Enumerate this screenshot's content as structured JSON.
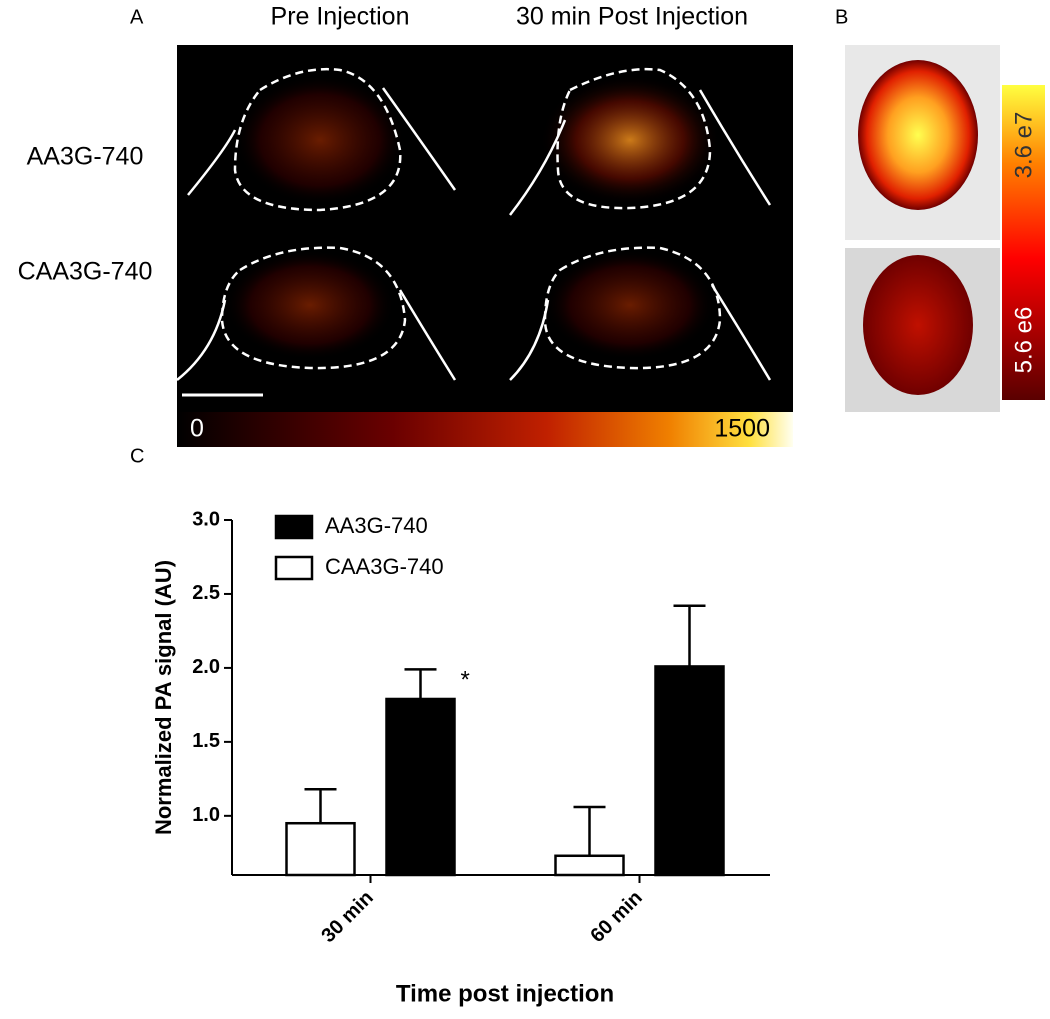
{
  "panel_labels": [
    "A",
    "B",
    "C"
  ],
  "panel_a": {
    "columns": [
      "Pre Injection",
      "30 min Post Injection"
    ],
    "rows": [
      "AA3G-740",
      "CAA3G-740"
    ],
    "colorbar": {
      "min": 0,
      "max": 1500
    }
  },
  "panel_b": {
    "colorbar": [
      "3.6 e7",
      "5.6 e6"
    ]
  },
  "chart_data": {
    "type": "bar",
    "x_label": "Time post injection",
    "y_label": "Normalized PA signal (AU)",
    "categories": [
      "30 min",
      "60 min"
    ],
    "series": [
      {
        "name": "AA3G-740",
        "color": "#000000",
        "values": [
          1.79,
          2.01
        ],
        "errors": [
          0.2,
          0.41
        ]
      },
      {
        "name": "CAA3G-740",
        "color": "#ffffff",
        "values": [
          0.95,
          0.73
        ],
        "errors": [
          0.23,
          0.33
        ]
      }
    ],
    "annotation": "*",
    "ylim": [
      0.6,
      3.0
    ],
    "yticks": [
      {
        "value": 1,
        "label": "1.0"
      },
      1.5,
      {
        "value": 2,
        "label": "2.0"
      },
      2.5,
      {
        "value": 3,
        "label": "3.0"
      }
    ]
  }
}
